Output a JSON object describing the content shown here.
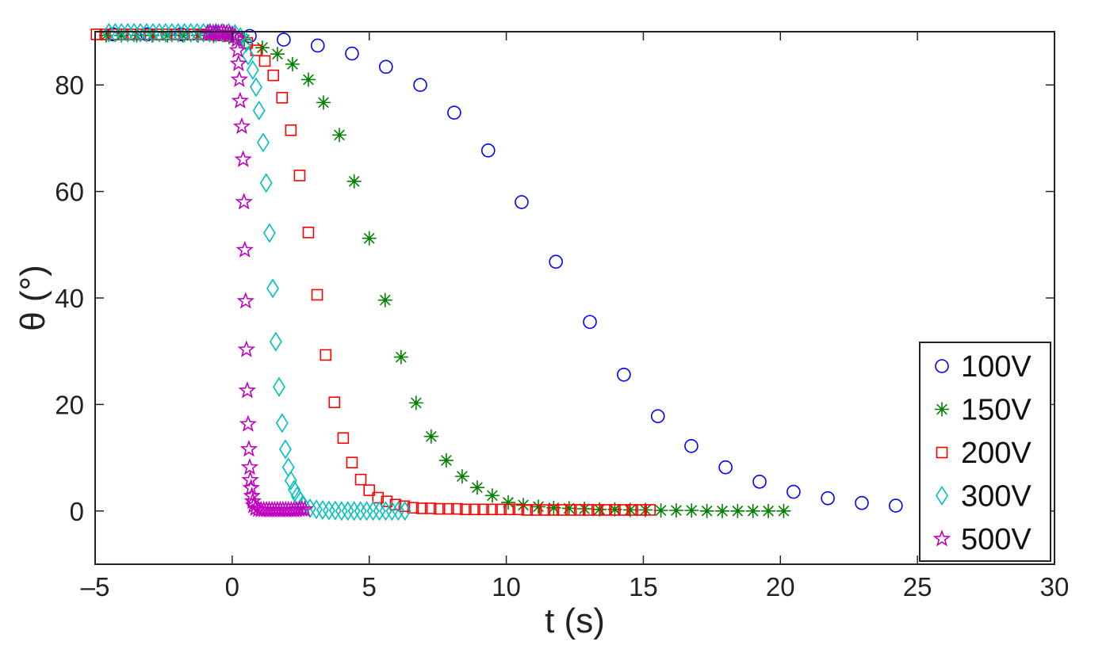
{
  "chart_data": {
    "type": "scatter",
    "title": "",
    "xlabel": "t (s)",
    "ylabel": "θ (°)",
    "xlim": [
      -5,
      30
    ],
    "ylim": [
      -10,
      90
    ],
    "xticks": [
      -5,
      0,
      5,
      10,
      15,
      20,
      25,
      30
    ],
    "xtick_labels": [
      "–5",
      "0",
      "5",
      "10",
      "15",
      "20",
      "25",
      "30"
    ],
    "yticks": [
      0,
      20,
      40,
      60,
      80
    ],
    "ytick_labels": [
      "0",
      "20",
      "40",
      "60",
      "80"
    ],
    "grid": false,
    "legend_position": "bottom-right",
    "series": [
      {
        "name": "100V",
        "marker": "circle",
        "color": "#0000ff",
        "x": [
          -4.35,
          -3.1,
          -1.86,
          -0.61,
          0.64,
          1.88,
          3.12,
          4.37,
          5.61,
          6.86,
          8.1,
          9.34,
          10.56,
          11.81,
          13.05,
          14.29,
          15.53,
          16.75,
          18.0,
          19.24,
          20.48,
          21.73,
          22.97,
          24.21
        ],
        "y": [
          89.5,
          89.5,
          89.5,
          89.5,
          89.2,
          88.5,
          87.4,
          85.9,
          83.4,
          80.0,
          74.8,
          67.7,
          58.0,
          46.8,
          35.5,
          25.6,
          17.8,
          12.2,
          8.2,
          5.5,
          3.6,
          2.4,
          1.5,
          1.0
        ]
      },
      {
        "name": "150V",
        "marker": "asterisk",
        "color": "#008000",
        "x": [
          -4.6,
          -4.04,
          -3.48,
          -2.92,
          -2.36,
          -1.8,
          -1.24,
          -0.68,
          -0.12,
          0.44,
          1.1,
          1.65,
          2.2,
          2.78,
          3.33,
          3.91,
          4.45,
          5.0,
          5.58,
          6.16,
          6.71,
          7.26,
          7.81,
          8.39,
          8.94,
          9.49,
          10.07,
          10.62,
          11.17,
          11.73,
          12.29,
          12.85,
          13.4,
          13.96,
          14.52,
          15.08,
          15.64,
          16.2,
          16.76,
          17.32,
          17.88,
          18.44,
          19.0,
          19.56,
          20.12
        ],
        "y": [
          89.3,
          89.3,
          89.3,
          89.3,
          89.3,
          89.3,
          89.3,
          89.2,
          89.0,
          88.5,
          87.0,
          85.8,
          83.9,
          81.0,
          76.7,
          70.6,
          61.9,
          51.2,
          39.6,
          28.9,
          20.3,
          14.0,
          9.5,
          6.5,
          4.4,
          2.9,
          1.6,
          1.1,
          0.8,
          0.6,
          0.5,
          0.4,
          0.3,
          0.3,
          0.2,
          0.2,
          0.1,
          0.1,
          0.1,
          0,
          0,
          0,
          0,
          0,
          0
        ]
      },
      {
        "name": "200V",
        "marker": "square",
        "color": "#ff0000",
        "x": [
          -4.95,
          -4.63,
          -4.31,
          -3.99,
          -3.67,
          -3.35,
          -3.03,
          -2.71,
          -2.39,
          -2.07,
          -1.75,
          -1.43,
          -1.11,
          -0.79,
          -0.47,
          -0.15,
          0.17,
          0.55,
          0.87,
          1.19,
          1.5,
          1.82,
          2.14,
          2.46,
          2.78,
          3.1,
          3.41,
          3.73,
          4.05,
          4.37,
          4.69,
          5.0,
          5.32,
          5.64,
          5.96,
          6.28,
          6.6,
          6.92,
          7.24,
          7.56,
          7.88,
          8.2,
          8.52,
          8.84,
          9.16,
          9.48,
          9.8,
          10.12,
          10.44,
          10.76,
          11.08,
          11.4,
          11.72,
          12.04,
          12.36,
          12.68,
          13.0,
          13.32,
          13.64,
          13.96,
          14.28,
          14.6,
          14.92,
          15.24
        ],
        "y": [
          89.5,
          89.5,
          89.5,
          89.5,
          89.5,
          89.5,
          89.5,
          89.5,
          89.5,
          89.5,
          89.5,
          89.5,
          89.5,
          89.4,
          89.3,
          89.2,
          89.0,
          87.9,
          86.5,
          84.5,
          81.8,
          77.6,
          71.5,
          63.0,
          52.3,
          40.6,
          29.3,
          20.4,
          13.7,
          9.1,
          5.9,
          3.9,
          2.5,
          1.8,
          1.2,
          0.9,
          0.6,
          0.5,
          0.5,
          0.4,
          0.4,
          0.4,
          0.3,
          0.3,
          0.3,
          0.3,
          0.3,
          0.3,
          0.3,
          0.2,
          0.2,
          0.2,
          0.2,
          0.2,
          0.2,
          0.2,
          0.2,
          0.2,
          0.2,
          0.2,
          0.2,
          0.2,
          0.2,
          0.2
        ]
      },
      {
        "name": "300V",
        "marker": "diamond",
        "color": "#00bfbf",
        "x": [
          -4.5,
          -4.27,
          -4.04,
          -3.81,
          -3.58,
          -3.35,
          -3.12,
          -2.89,
          -2.66,
          -2.43,
          -2.2,
          -1.97,
          -1.74,
          -1.51,
          -1.28,
          -1.05,
          -0.82,
          -0.59,
          -0.36,
          -0.13,
          0.1,
          0.3,
          0.52,
          0.58,
          0.75,
          0.87,
          0.98,
          1.13,
          1.24,
          1.36,
          1.48,
          1.59,
          1.71,
          1.82,
          1.94,
          2.05,
          2.14,
          2.26,
          2.37,
          2.49,
          2.61,
          2.84,
          3.07,
          3.3,
          3.53,
          3.76,
          3.99,
          4.22,
          4.45,
          4.68,
          4.91,
          5.14,
          5.37,
          5.6,
          5.83,
          6.06,
          6.3
        ],
        "y": [
          89.8,
          89.8,
          89.8,
          89.8,
          89.8,
          89.8,
          89.8,
          89.8,
          89.8,
          89.8,
          89.8,
          89.8,
          89.8,
          89.8,
          89.8,
          89.8,
          89.8,
          89.8,
          89.8,
          89.8,
          89.6,
          89.0,
          88.0,
          85.5,
          82.8,
          79.6,
          75.2,
          69.2,
          61.6,
          52.2,
          41.8,
          31.8,
          23.3,
          16.5,
          11.6,
          8.2,
          5.7,
          4.0,
          2.8,
          1.9,
          1.0,
          0.5,
          0.3,
          0.2,
          0.1,
          0.1,
          0,
          0,
          0,
          0,
          0,
          0,
          0,
          0,
          0,
          0,
          0
        ]
      },
      {
        "name": "500V",
        "marker": "star",
        "color": "#bf00bf",
        "x": [
          -0.9,
          -0.8,
          -0.7,
          -0.6,
          -0.5,
          -0.4,
          -0.3,
          -0.2,
          -0.1,
          0.0,
          0.1,
          0.17,
          0.2,
          0.23,
          0.26,
          0.29,
          0.35,
          0.4,
          0.43,
          0.46,
          0.49,
          0.52,
          0.55,
          0.58,
          0.61,
          0.64,
          0.66,
          0.69,
          0.72,
          0.75,
          0.78,
          0.85,
          0.95,
          1.05,
          1.15,
          1.25,
          1.35,
          1.45,
          1.55,
          1.65,
          1.75,
          1.85,
          1.95,
          2.05,
          2.15,
          2.25,
          2.35,
          2.45,
          2.55,
          2.65
        ],
        "y": [
          89.8,
          89.8,
          89.8,
          89.8,
          89.8,
          89.8,
          89.8,
          89.7,
          89.6,
          89.5,
          89.2,
          88.5,
          86.5,
          84.0,
          81.0,
          77.0,
          72.2,
          66.0,
          58.0,
          49.0,
          39.4,
          30.3,
          22.6,
          16.3,
          11.6,
          8.2,
          5.8,
          4.3,
          2.8,
          1.8,
          1.0,
          0.5,
          0.3,
          0.2,
          0.2,
          0.2,
          0.2,
          0.2,
          0.2,
          0.2,
          0.2,
          0.2,
          0.2,
          0.2,
          0.2,
          0.2,
          0.2,
          0.3,
          0.3,
          0.3
        ]
      }
    ]
  }
}
